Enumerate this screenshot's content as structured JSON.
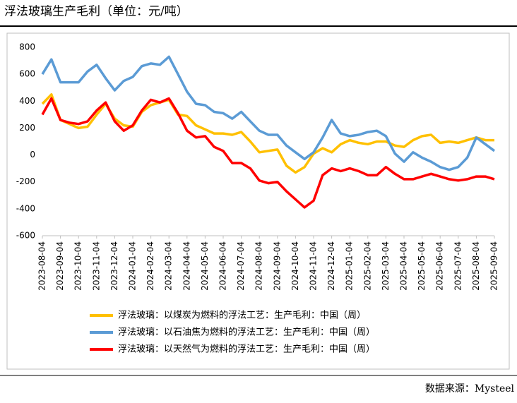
{
  "chart_data": {
    "type": "line",
    "title": "浮法玻璃生产毛利（单位：元/吨）",
    "source": "数据来源：Mysteel",
    "categories": [
      "2023-08-04",
      null,
      "2023-09-04",
      null,
      "2023-10-04",
      null,
      "2023-11-04",
      null,
      "2023-12-04",
      null,
      "2024-01-04",
      null,
      "2024-02-04",
      null,
      "2024-03-04",
      null,
      "2024-04-04",
      null,
      "2024-05-04",
      null,
      "2024-06-04",
      null,
      "2024-07-04",
      null,
      "2024-08-04",
      null,
      "2024-09-04",
      null,
      "2024-10-04",
      null,
      "2024-11-04",
      null,
      "2024-12-04",
      null,
      "2025-01-04",
      null,
      "2025-02-04",
      null,
      "2025-03-04",
      null,
      "2025-04-04",
      null,
      "2025-05-04",
      null,
      "2025-06-04",
      null,
      "2025-07-04",
      null,
      "2025-08-04",
      null,
      "2025-09-04"
    ],
    "series": [
      {
        "name": "浮法玻璃：以煤炭为燃料的浮法工艺：生产毛利：中国（周）",
        "color": "#ffc000",
        "values": [
          380,
          450,
          260,
          230,
          200,
          210,
          300,
          380,
          270,
          220,
          210,
          320,
          370,
          390,
          410,
          300,
          290,
          220,
          190,
          160,
          160,
          150,
          170,
          100,
          20,
          30,
          40,
          -80,
          -130,
          -90,
          10,
          50,
          20,
          80,
          110,
          90,
          80,
          100,
          100,
          70,
          60,
          110,
          140,
          150,
          90,
          100,
          90,
          110,
          130,
          110,
          110
        ]
      },
      {
        "name": "浮法玻璃：以石油焦为燃料的浮法工艺：生产毛利：中国（周）",
        "color": "#5b9bd5",
        "values": [
          600,
          710,
          540,
          540,
          540,
          620,
          670,
          570,
          480,
          550,
          580,
          660,
          680,
          670,
          730,
          600,
          470,
          380,
          370,
          320,
          310,
          270,
          320,
          250,
          180,
          150,
          150,
          70,
          20,
          -30,
          20,
          130,
          260,
          160,
          140,
          150,
          170,
          180,
          140,
          10,
          -50,
          20,
          -20,
          -50,
          -90,
          -110,
          -90,
          -20,
          130,
          80,
          30
        ]
      },
      {
        "name": "浮法玻璃：以天然气为燃料的浮法工艺：生产毛利：中国（周）",
        "color": "#ff0000",
        "values": [
          300,
          420,
          260,
          240,
          230,
          250,
          330,
          390,
          250,
          180,
          220,
          330,
          410,
          390,
          420,
          310,
          180,
          130,
          140,
          60,
          30,
          -60,
          -60,
          -100,
          -190,
          -210,
          -200,
          -270,
          -330,
          -390,
          -340,
          -150,
          -100,
          -120,
          -100,
          -120,
          -150,
          -150,
          -90,
          -140,
          -180,
          -180,
          -160,
          -140,
          -160,
          -180,
          -190,
          -180,
          -160,
          -160,
          -180
        ]
      }
    ],
    "ylim": [
      -600,
      800
    ],
    "yticks": [
      -600,
      -400,
      -200,
      0,
      200,
      400,
      600,
      800
    ],
    "grid": false
  }
}
